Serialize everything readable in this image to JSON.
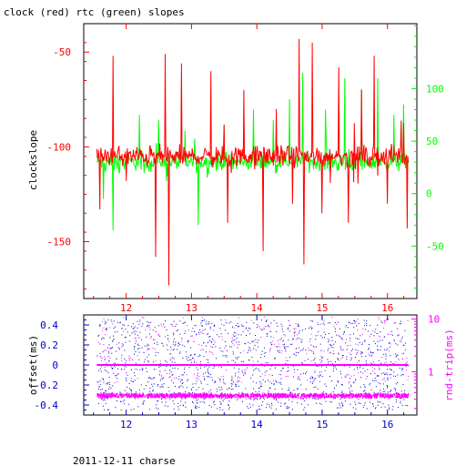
{
  "page": {
    "title": "clock (red) rtc (green) slopes",
    "footer": "2011-12-11 charse"
  },
  "colors": {
    "clock": "#ff0000",
    "rtc": "#00ff00",
    "offset": "#0000cc",
    "rtt": "#ff00ff",
    "axis_left_top": "#ff0000",
    "axis_right_top": "#00ff00",
    "axis_bottom_x_top": "#ff0000",
    "axis_left_bottom": "#0000cc",
    "axis_right_bottom": "#ff00ff",
    "axis_bottom_x_bottom": "#0000cc"
  },
  "chart_data": [
    {
      "type": "line",
      "title": "clock (red) rtc (green) slopes",
      "xlabel": "",
      "ylabel": "clockslope",
      "xlim": [
        11.35,
        16.45
      ],
      "ylim": [
        -180,
        -35
      ],
      "y2lim": [
        -100,
        162
      ],
      "x_ticks": [
        12,
        13,
        14,
        15,
        16
      ],
      "x_tick_labels": [
        "12",
        "13",
        "14",
        "15",
        "16"
      ],
      "y_ticks": [
        -150,
        -100,
        -50
      ],
      "y_tick_labels": [
        "-150",
        "-100",
        "-50"
      ],
      "y2_ticks": [
        -50,
        0,
        50,
        100
      ],
      "y2_tick_labels": [
        "-50",
        "0",
        "50",
        "100"
      ],
      "grid": false,
      "series": [
        {
          "axis": "left",
          "x_range": [
            11.55,
            16.32
          ],
          "baseline": -105,
          "noise": 8,
          "spikes": [
            {
              "x": 11.6,
              "y": -133
            },
            {
              "x": 11.8,
              "y": -52
            },
            {
              "x": 12.0,
              "y": -118
            },
            {
              "x": 12.45,
              "y": -158
            },
            {
              "x": 12.6,
              "y": -51
            },
            {
              "x": 12.65,
              "y": -173
            },
            {
              "x": 12.85,
              "y": -56
            },
            {
              "x": 13.3,
              "y": -60
            },
            {
              "x": 13.55,
              "y": -140
            },
            {
              "x": 13.8,
              "y": -70
            },
            {
              "x": 14.1,
              "y": -155
            },
            {
              "x": 14.3,
              "y": -80
            },
            {
              "x": 14.55,
              "y": -130
            },
            {
              "x": 14.65,
              "y": -43
            },
            {
              "x": 14.72,
              "y": -162
            },
            {
              "x": 14.85,
              "y": -45
            },
            {
              "x": 15.0,
              "y": -135
            },
            {
              "x": 15.25,
              "y": -58
            },
            {
              "x": 15.4,
              "y": -140
            },
            {
              "x": 15.6,
              "y": -70
            },
            {
              "x": 15.8,
              "y": -52
            },
            {
              "x": 16.0,
              "y": -130
            },
            {
              "x": 16.3,
              "y": -143
            }
          ]
        },
        {
          "axis": "right",
          "x_range": [
            11.55,
            16.32
          ],
          "baseline": 30,
          "noise": 12,
          "spikes": [
            {
              "x": 11.65,
              "y": -5
            },
            {
              "x": 11.8,
              "y": -35
            },
            {
              "x": 12.2,
              "y": 75
            },
            {
              "x": 12.5,
              "y": 70
            },
            {
              "x": 12.9,
              "y": 60
            },
            {
              "x": 13.1,
              "y": -30
            },
            {
              "x": 13.5,
              "y": 65
            },
            {
              "x": 13.95,
              "y": 80
            },
            {
              "x": 14.25,
              "y": 70
            },
            {
              "x": 14.5,
              "y": 90
            },
            {
              "x": 14.7,
              "y": 115
            },
            {
              "x": 15.05,
              "y": 80
            },
            {
              "x": 15.35,
              "y": 110
            },
            {
              "x": 15.6,
              "y": 100
            },
            {
              "x": 15.85,
              "y": 110
            },
            {
              "x": 16.1,
              "y": 75
            },
            {
              "x": 16.25,
              "y": 85
            }
          ]
        }
      ]
    },
    {
      "type": "scatter",
      "title": "",
      "xlabel": "",
      "ylabel": "offset(ms)",
      "y2label": "rnd-trip(ms)",
      "xlim": [
        11.35,
        16.45
      ],
      "ylim": [
        -0.5,
        0.5
      ],
      "y2lim_log": [
        0.15,
        12
      ],
      "x_ticks": [
        12,
        13,
        14,
        15,
        16
      ],
      "x_tick_labels": [
        "12",
        "13",
        "14",
        "15",
        "16"
      ],
      "y_ticks": [
        -0.4,
        -0.2,
        0,
        0.2,
        0.4
      ],
      "y_tick_labels": [
        "-0.4",
        "-0.2",
        "0",
        "0.2",
        "0.4"
      ],
      "y2_ticks": [
        1,
        10
      ],
      "y2_tick_labels": [
        "1",
        "10"
      ],
      "grid": false,
      "series": [
        {
          "axis": "left",
          "kind": "scatter-uniform",
          "x_range": [
            11.55,
            16.32
          ],
          "y_range": [
            -0.45,
            0.45
          ],
          "count": 1400
        },
        {
          "axis": "left",
          "kind": "constant",
          "x_range": [
            11.55,
            16.32
          ],
          "value": 0.0
        },
        {
          "axis": "right",
          "kind": "band",
          "x_range": [
            11.55,
            16.32
          ],
          "value": 0.35,
          "spread": 0.05
        },
        {
          "axis": "right",
          "kind": "scatter-uniform-log",
          "x_range": [
            11.55,
            16.32
          ],
          "y_range": [
            0.6,
            11
          ],
          "count": 350
        }
      ]
    }
  ]
}
